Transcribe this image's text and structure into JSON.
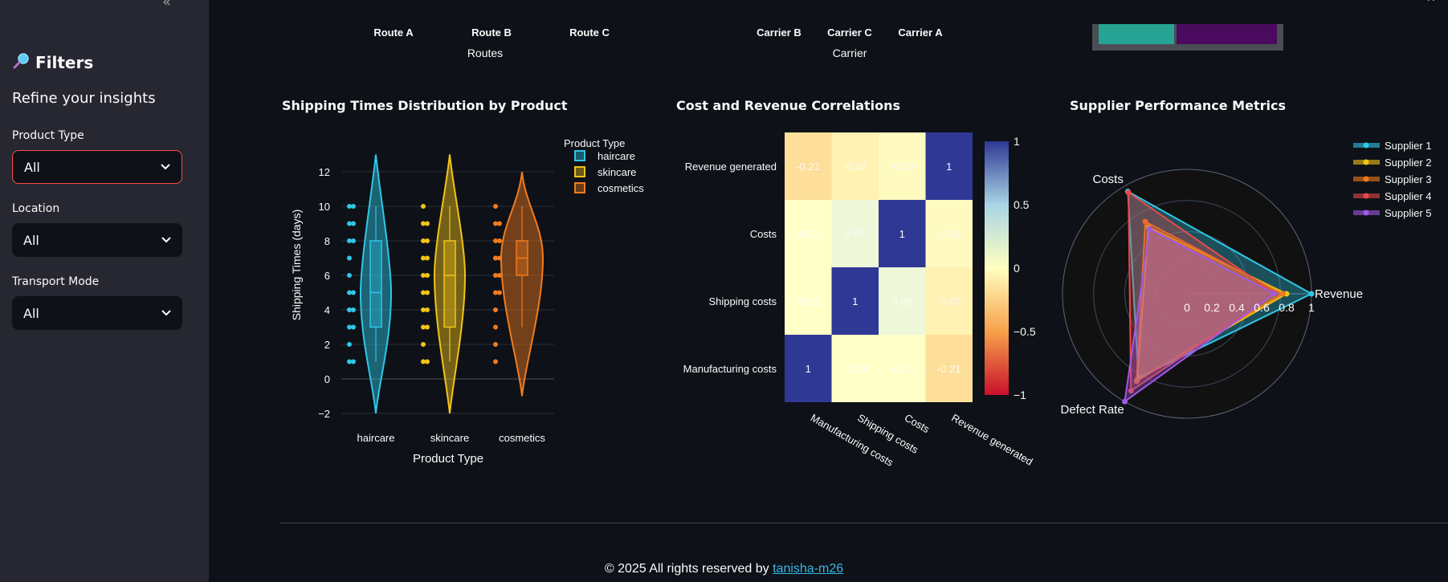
{
  "sidebar": {
    "title": "Filters",
    "subtitle": "Refine your insights",
    "filters": [
      {
        "label": "Product Type",
        "value": "All"
      },
      {
        "label": "Location",
        "value": "All"
      },
      {
        "label": "Transport Mode",
        "value": "All"
      }
    ]
  },
  "top": {
    "routes": [
      "Route A",
      "Route B",
      "Route C"
    ],
    "routes_label": "Routes",
    "carriers": [
      "Carrier B",
      "Carrier C",
      "Carrier A"
    ],
    "carrier_label": "Carrier",
    "colors": {
      "teal": "#26a393",
      "purple": "#4a0a5e"
    }
  },
  "panels": {
    "violin_title": "Shipping Times Distribution by Product",
    "heatmap_title": "Cost and Revenue Correlations",
    "radar_title": "Supplier Performance Metrics"
  },
  "footer": {
    "text": "© 2025 All rights reserved by ",
    "link": "tanisha-m26"
  },
  "chart_data": [
    {
      "type": "violin",
      "title": "Shipping Times Distribution by Product",
      "xlabel": "Product Type",
      "ylabel": "Shipping Times (days)",
      "legend_title": "Product Type",
      "yticks": [
        -2,
        0,
        2,
        4,
        6,
        8,
        10,
        12
      ],
      "categories": [
        "haircare",
        "skincare",
        "cosmetics"
      ],
      "series": [
        {
          "name": "haircare",
          "color": "#2ec7e6",
          "q1": 3,
          "median": 5,
          "q3": 8,
          "min": 1,
          "max": 10,
          "kde_min": -2,
          "kde_max": 13,
          "points": [
            1,
            1,
            2,
            3,
            3,
            4,
            4,
            4,
            5,
            5,
            6,
            7,
            8,
            8,
            9,
            9,
            10,
            10
          ]
        },
        {
          "name": "skincare",
          "color": "#f2c318",
          "q1": 3,
          "median": 6,
          "q3": 8,
          "min": 1,
          "max": 10,
          "kde_min": -2,
          "kde_max": 13,
          "points": [
            1,
            1,
            2,
            3,
            3,
            4,
            4,
            5,
            5,
            6,
            6,
            7,
            7,
            8,
            8,
            9,
            9,
            10
          ]
        },
        {
          "name": "cosmetics",
          "color": "#f07b1e",
          "q1": 6,
          "median": 7,
          "q3": 8,
          "min": 3,
          "max": 10,
          "kde_min": -1,
          "kde_max": 12,
          "points": [
            1,
            2,
            3,
            4,
            5,
            5,
            6,
            6,
            7,
            7,
            7,
            8,
            8,
            9,
            9,
            10
          ]
        }
      ]
    },
    {
      "type": "heatmap",
      "title": "Cost and Revenue Correlations",
      "x": [
        "Manufacturing costs",
        "Shipping costs",
        "Costs",
        "Revenue generated"
      ],
      "y": [
        "Revenue generated",
        "Costs",
        "Shipping costs",
        "Manufacturing costs"
      ],
      "z": [
        [
          -0.21,
          -0.07,
          -0.03,
          1
        ],
        [
          -0.01,
          0.05,
          1,
          -0.03
        ],
        [
          -0.01,
          1,
          0.05,
          -0.07
        ],
        [
          1,
          -0.01,
          -0.01,
          -0.21
        ]
      ],
      "colorbar_ticks": [
        1,
        0.5,
        0,
        -0.5,
        -1
      ]
    },
    {
      "type": "radar",
      "title": "Supplier Performance Metrics",
      "axes": [
        "Revenue",
        "Costs",
        "Defect Rate"
      ],
      "radial_ticks": [
        0,
        0.2,
        0.4,
        0.6,
        0.8,
        1
      ],
      "series": [
        {
          "name": "Supplier 1",
          "color": "#2ec7e6",
          "values": [
            1.0,
            0.95,
            0.78
          ]
        },
        {
          "name": "Supplier 2",
          "color": "#f2c318",
          "values": [
            0.8,
            0.62,
            0.8
          ]
        },
        {
          "name": "Supplier 3",
          "color": "#f07b1e",
          "values": [
            0.77,
            0.67,
            0.81
          ]
        },
        {
          "name": "Supplier 4",
          "color": "#e8494a",
          "values": [
            0.71,
            0.94,
            0.9
          ]
        },
        {
          "name": "Supplier 5",
          "color": "#a05ae6",
          "values": [
            0.7,
            0.6,
            1.0
          ]
        }
      ]
    }
  ]
}
